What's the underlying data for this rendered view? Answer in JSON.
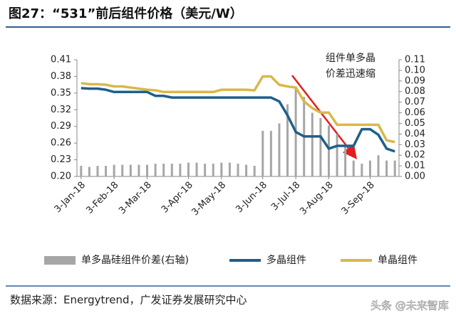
{
  "chart_data": {
    "type": "line",
    "title": "图27：“531”前后组件价格（美元/W）",
    "annotation": [
      "组件单多晶",
      "价差迅速缩"
    ],
    "source": "数据来源：Energytrend，广发证券发展研究中心",
    "watermark": "头条 @未来智库",
    "categories": [
      "3-Jan-18",
      null,
      null,
      null,
      "3-Feb-18",
      null,
      null,
      null,
      "3-Mar-18",
      null,
      null,
      null,
      null,
      "3-Apr-18",
      null,
      null,
      null,
      "3-May-18",
      null,
      null,
      null,
      null,
      "3-Jun-18",
      null,
      null,
      null,
      "3-Jul-18",
      null,
      null,
      null,
      "3-Aug-18",
      null,
      null,
      null,
      null,
      "3-Sep-18",
      null,
      null,
      null
    ],
    "series": [
      {
        "name": "单多晶硅组件价差(右轴)",
        "type": "bar",
        "axis": "y2",
        "color": "#a6a6a6",
        "values": [
          0.01,
          0.009,
          0.01,
          0.01,
          0.011,
          0.011,
          0.011,
          0.011,
          0.011,
          0.012,
          0.012,
          0.012,
          0.012,
          0.013,
          0.013,
          0.012,
          0.012,
          0.013,
          0.013,
          0.012,
          0.011,
          0.01,
          0.043,
          0.043,
          0.05,
          0.068,
          0.085,
          0.075,
          0.06,
          0.055,
          0.048,
          0.04,
          0.03,
          0.015,
          0.012,
          0.015,
          0.02,
          0.015,
          0.015
        ]
      },
      {
        "name": "多晶组件",
        "type": "line",
        "color": "#1f5f8b",
        "values": [
          0.359,
          0.358,
          0.358,
          0.356,
          0.352,
          0.352,
          0.352,
          0.352,
          0.352,
          0.345,
          0.345,
          0.342,
          0.342,
          0.342,
          0.342,
          0.342,
          0.342,
          0.342,
          0.342,
          0.342,
          0.342,
          0.342,
          0.342,
          0.342,
          0.335,
          0.31,
          0.28,
          0.272,
          0.272,
          0.272,
          0.25,
          0.255,
          0.255,
          0.255,
          0.285,
          0.285,
          0.275,
          0.25,
          0.245
        ]
      },
      {
        "name": "单晶组件",
        "type": "line",
        "color": "#d9b84a",
        "values": [
          0.368,
          0.366,
          0.366,
          0.365,
          0.362,
          0.362,
          0.36,
          0.358,
          0.356,
          0.355,
          0.352,
          0.352,
          0.352,
          0.352,
          0.352,
          0.352,
          0.352,
          0.356,
          0.356,
          0.356,
          0.356,
          0.355,
          0.38,
          0.38,
          0.365,
          0.362,
          0.36,
          0.335,
          0.323,
          0.315,
          0.315,
          0.293,
          0.293,
          0.293,
          0.293,
          0.293,
          0.293,
          0.265,
          0.262
        ]
      }
    ],
    "ylim": [
      0.2,
      0.41
    ],
    "yticks": [
      {
        "value": 0.2,
        "label": "0.20"
      },
      {
        "value": 0.23,
        "label": "0.23"
      },
      {
        "value": 0.26,
        "label": "0.26"
      },
      {
        "value": 0.29,
        "label": "0.29"
      },
      {
        "value": 0.32,
        "label": "0.32"
      },
      {
        "value": 0.35,
        "label": "0.35"
      },
      {
        "value": 0.38,
        "label": "0.38"
      },
      {
        "value": 0.41,
        "label": "0.41"
      }
    ],
    "y2lim": [
      0,
      0.11
    ],
    "y2ticks": [
      {
        "value": 0,
        "label": "0.00"
      },
      {
        "value": 0.01,
        "label": "0.01"
      },
      {
        "value": 0.02,
        "label": "0.02"
      },
      {
        "value": 0.03,
        "label": "0.03"
      },
      {
        "value": 0.04,
        "label": "0.04"
      },
      {
        "value": 0.05,
        "label": "0.05"
      },
      {
        "value": 0.06,
        "label": "0.06"
      },
      {
        "value": 0.07,
        "label": "0.07"
      },
      {
        "value": 0.08,
        "label": "0.08"
      },
      {
        "value": 0.09,
        "label": "0.09"
      },
      {
        "value": 0.1,
        "label": "0.10"
      },
      {
        "value": 0.11,
        "label": "0.11"
      }
    ],
    "legend": "bottom"
  }
}
